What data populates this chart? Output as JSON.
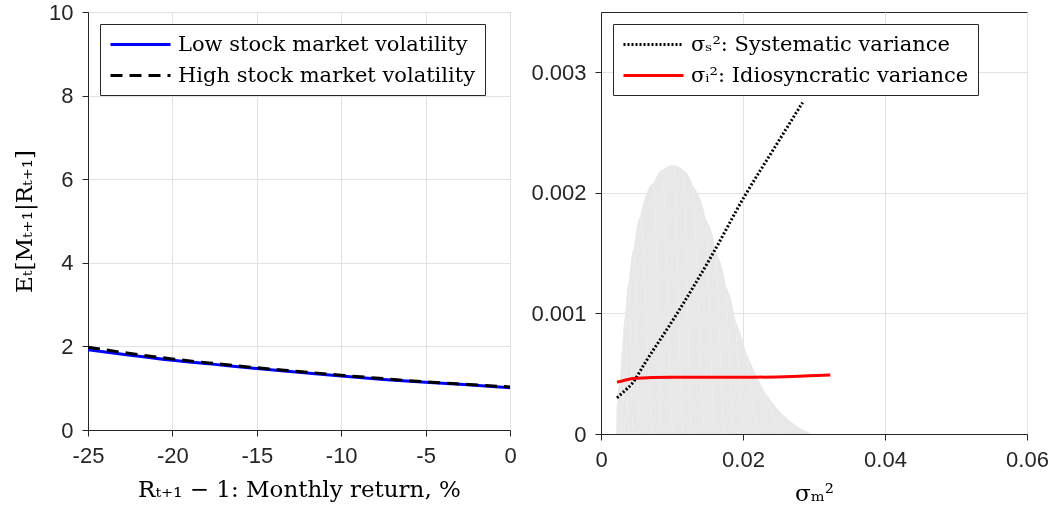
{
  "chart_data": [
    {
      "type": "line",
      "xlabel": "Rₜ₊₁ − 1: Monthly return, %",
      "ylabel": "Eₜ[Mₜ₊₁|Rₜ₊₁]",
      "x": [
        -25,
        -22.5,
        -20,
        -17.5,
        -15,
        -12.5,
        -10,
        -7.5,
        -5,
        -2.5,
        0
      ],
      "series": [
        {
          "name": "Low stock market volatility",
          "color": "#0000ff",
          "line_style": "solid",
          "values": [
            1.92,
            1.79,
            1.67,
            1.57,
            1.47,
            1.38,
            1.29,
            1.21,
            1.14,
            1.08,
            1.01
          ]
        },
        {
          "name": "High stock market volatility",
          "color": "#000000",
          "line_style": "dashed",
          "values": [
            1.98,
            1.83,
            1.7,
            1.59,
            1.49,
            1.4,
            1.31,
            1.23,
            1.15,
            1.09,
            1.03
          ]
        }
      ],
      "xlim": [
        -25,
        0
      ],
      "ylim": [
        0,
        10
      ],
      "xticks": [
        -25,
        -20,
        -15,
        -10,
        -5,
        0
      ],
      "yticks": [
        0,
        2,
        4,
        6,
        8,
        10
      ],
      "grid": true,
      "legend": "top left"
    },
    {
      "type": "line",
      "xlabel": "σₘ²",
      "series": [
        {
          "type": "area",
          "color": "#e8e8e8",
          "x": [
            0.00215,
            0.0022,
            0.0027,
            0.003,
            0.0034,
            0.0039,
            0.0046,
            0.0055,
            0.0074,
            0.0086,
            0.0102,
            0.0116,
            0.0128,
            0.0147,
            0.0161,
            0.0175,
            0.0188,
            0.0203,
            0.0224,
            0.026,
            0.0297
          ],
          "values": [
            0,
            0.0002,
            0.00042,
            0.0007,
            0.00097,
            0.00125,
            0.00153,
            0.0018,
            0.00208,
            0.00219,
            0.00223,
            0.00219,
            0.00208,
            0.0018,
            0.00153,
            0.00125,
            0.00097,
            0.0007,
            0.00042,
            0.00014,
            0
          ]
        },
        {
          "name": "σₛ²: Systematic variance",
          "color": "#000000",
          "line_style": "dotted",
          "x": [
            0.00225,
            0.003,
            0.0044,
            0.0062,
            0.0104,
            0.0155,
            0.0202,
            0.0245,
            0.0284
          ],
          "values": [
            0.0003,
            0.00034,
            0.00042,
            0.00059,
            0.00097,
            0.00147,
            0.00197,
            0.00238,
            0.00275
          ]
        },
        {
          "name": "σᵢ²: Idiosyncratic variance",
          "color": "#ff0000",
          "line_style": "solid",
          "x": [
            0.00225,
            0.003,
            0.0045,
            0.01,
            0.02,
            0.0323
          ],
          "values": [
            0.00043,
            0.00044,
            0.00046,
            0.00047,
            0.00047,
            0.00049
          ]
        }
      ],
      "xlim": [
        0,
        0.06
      ],
      "ylim": [
        0,
        0.0035
      ],
      "xticks": [
        0,
        0.02,
        0.04,
        0.06
      ],
      "yticks": [
        0,
        0.001,
        0.002,
        0.003
      ],
      "grid": true,
      "legend": "top left"
    }
  ]
}
